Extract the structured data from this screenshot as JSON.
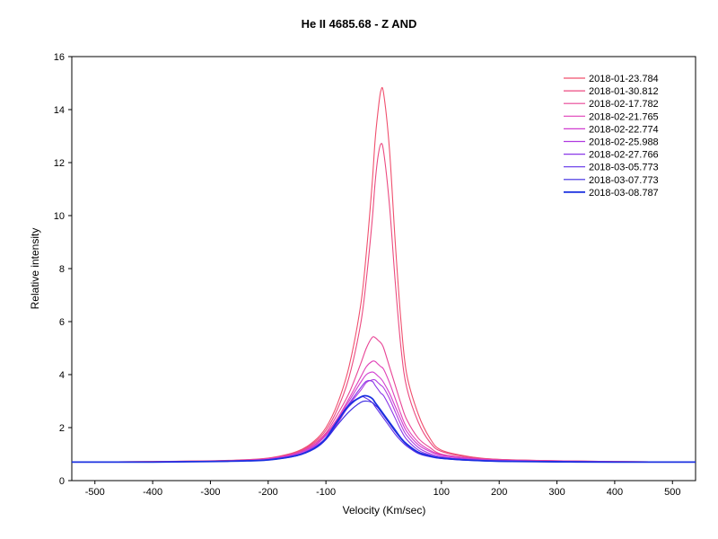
{
  "chart_data": {
    "type": "line",
    "title": "He II 4685.68 - Z AND",
    "xlabel": "Velocity (Km/sec)",
    "ylabel": "Relative intensity",
    "xlim": [
      -540,
      540
    ],
    "ylim": [
      0,
      16
    ],
    "x_ticks": [
      -500,
      -400,
      -300,
      -200,
      -100,
      100,
      200,
      300,
      400,
      500
    ],
    "x_tick_labels": [
      "-500",
      "-400",
      "-300",
      "-200",
      "-100",
      "100",
      "200",
      "300",
      "400",
      "500"
    ],
    "y_ticks": [
      0,
      2,
      4,
      6,
      8,
      10,
      12,
      14,
      16
    ],
    "y_tick_labels": [
      "0",
      "2",
      "4",
      "6",
      "8",
      "10",
      "12",
      "14",
      "16"
    ],
    "grid": false,
    "legend_position": "top-right",
    "x": [
      -540,
      -400,
      -300,
      -250,
      -200,
      -150,
      -120,
      -100,
      -80,
      -60,
      -40,
      -30,
      -20,
      -15,
      -10,
      -5,
      0,
      10,
      20,
      30,
      40,
      60,
      80,
      100,
      150,
      200,
      300,
      400,
      540
    ],
    "series": [
      {
        "name": "2018-01-23.784",
        "color": "#f0506e",
        "values": [
          0.7,
          0.72,
          0.75,
          0.78,
          0.85,
          1.1,
          1.5,
          2.0,
          2.9,
          4.3,
          6.6,
          8.6,
          11.2,
          12.8,
          13.9,
          14.7,
          14.6,
          12.5,
          9.0,
          6.0,
          4.0,
          2.5,
          1.6,
          1.15,
          0.9,
          0.8,
          0.75,
          0.72,
          0.7
        ]
      },
      {
        "name": "2018-01-30.812",
        "color": "#ec4a80",
        "values": [
          0.7,
          0.72,
          0.74,
          0.77,
          0.84,
          1.08,
          1.45,
          1.9,
          2.7,
          3.9,
          5.9,
          7.6,
          9.8,
          11.2,
          12.2,
          12.7,
          12.4,
          10.4,
          7.5,
          5.0,
          3.5,
          2.2,
          1.45,
          1.1,
          0.88,
          0.8,
          0.75,
          0.72,
          0.7
        ]
      },
      {
        "name": "2018-02-17.782",
        "color": "#e84596",
        "values": [
          0.7,
          0.72,
          0.74,
          0.77,
          0.83,
          1.05,
          1.4,
          1.8,
          2.5,
          3.3,
          4.4,
          5.0,
          5.4,
          5.4,
          5.3,
          5.2,
          5.0,
          4.3,
          3.6,
          2.9,
          2.3,
          1.6,
          1.25,
          1.0,
          0.85,
          0.78,
          0.74,
          0.72,
          0.7
        ]
      },
      {
        "name": "2018-02-21.765",
        "color": "#e040b8",
        "values": [
          0.7,
          0.71,
          0.73,
          0.76,
          0.82,
          1.03,
          1.35,
          1.75,
          2.35,
          3.1,
          3.9,
          4.3,
          4.5,
          4.5,
          4.4,
          4.3,
          4.2,
          3.7,
          3.1,
          2.5,
          2.0,
          1.45,
          1.15,
          0.98,
          0.84,
          0.77,
          0.74,
          0.72,
          0.7
        ]
      },
      {
        "name": "2018-02-22.774",
        "color": "#d03cd0",
        "values": [
          0.7,
          0.71,
          0.73,
          0.76,
          0.82,
          1.02,
          1.32,
          1.7,
          2.3,
          3.0,
          3.7,
          4.0,
          4.1,
          4.05,
          3.95,
          3.85,
          3.7,
          3.3,
          2.8,
          2.3,
          1.85,
          1.35,
          1.1,
          0.95,
          0.83,
          0.77,
          0.73,
          0.71,
          0.7
        ]
      },
      {
        "name": "2018-02-25.988",
        "color": "#b03ae0",
        "values": [
          0.7,
          0.71,
          0.72,
          0.75,
          0.8,
          0.98,
          1.28,
          1.6,
          2.15,
          2.85,
          3.4,
          3.7,
          3.8,
          3.8,
          3.7,
          3.6,
          3.5,
          3.1,
          2.6,
          2.1,
          1.7,
          1.25,
          1.02,
          0.9,
          0.8,
          0.76,
          0.72,
          0.71,
          0.7
        ]
      },
      {
        "name": "2018-02-27.766",
        "color": "#8a38e8",
        "values": [
          0.7,
          0.71,
          0.72,
          0.75,
          0.79,
          0.96,
          1.25,
          1.58,
          2.2,
          2.9,
          3.5,
          3.75,
          3.75,
          3.6,
          3.45,
          3.3,
          3.2,
          2.8,
          2.35,
          1.9,
          1.55,
          1.15,
          0.97,
          0.87,
          0.78,
          0.75,
          0.72,
          0.71,
          0.7
        ]
      },
      {
        "name": "2018-03-05.773",
        "color": "#6030e8",
        "values": [
          0.7,
          0.7,
          0.72,
          0.74,
          0.78,
          0.95,
          1.2,
          1.55,
          2.2,
          2.8,
          3.15,
          3.1,
          2.95,
          2.8,
          2.65,
          2.5,
          2.35,
          2.05,
          1.75,
          1.5,
          1.3,
          1.02,
          0.9,
          0.83,
          0.76,
          0.73,
          0.71,
          0.7,
          0.7
        ]
      },
      {
        "name": "2018-03-07.773",
        "color": "#3a28e0",
        "values": [
          0.7,
          0.7,
          0.72,
          0.74,
          0.78,
          0.94,
          1.2,
          1.55,
          2.1,
          2.6,
          2.95,
          3.0,
          2.95,
          2.85,
          2.75,
          2.6,
          2.45,
          2.15,
          1.85,
          1.58,
          1.35,
          1.05,
          0.92,
          0.84,
          0.77,
          0.73,
          0.71,
          0.7,
          0.7
        ]
      },
      {
        "name": "2018-03-08.787",
        "color": "#1a30e0",
        "values": [
          0.7,
          0.7,
          0.72,
          0.74,
          0.78,
          0.95,
          1.22,
          1.6,
          2.25,
          2.85,
          3.15,
          3.2,
          3.1,
          2.95,
          2.8,
          2.65,
          2.5,
          2.2,
          1.9,
          1.6,
          1.38,
          1.07,
          0.93,
          0.85,
          0.77,
          0.73,
          0.71,
          0.7,
          0.7
        ]
      }
    ]
  }
}
